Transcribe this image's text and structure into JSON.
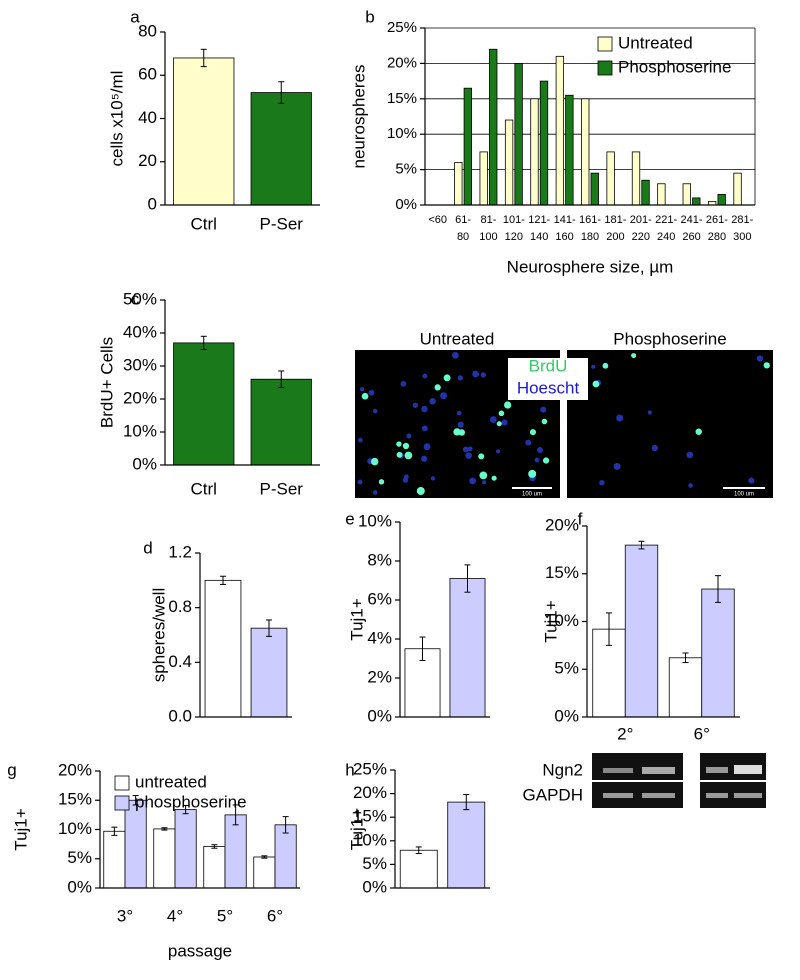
{
  "chart_data": [
    {
      "type": "bar",
      "label": "a",
      "ylabel": "cells x10⁵/ml",
      "categories": [
        "Ctrl",
        "P-Ser"
      ],
      "values": [
        68,
        52
      ],
      "errors": [
        4,
        5
      ],
      "colors": [
        "#ffffcc",
        "#1a7a1a"
      ],
      "ylim": [
        0,
        80
      ],
      "yticks": [
        0,
        20,
        40,
        60,
        80
      ]
    },
    {
      "type": "grouped-bar",
      "label": "b",
      "ylabel": "neurospheres",
      "xlabel": "Neurosphere size, µm",
      "grid": true,
      "legend": "top-right",
      "categories": [
        "<60",
        "61-80",
        "81-100",
        "101-120",
        "121-140",
        "141-160",
        "161-180",
        "181-200",
        "201-220",
        "221-240",
        "241-260",
        "261-280",
        "281-300"
      ],
      "series": [
        {
          "name": "Untreated",
          "color": "#ffffcc",
          "values": [
            0,
            6,
            7.5,
            12,
            15,
            21,
            15,
            7.5,
            7.5,
            3,
            3,
            0.5,
            4.5
          ]
        },
        {
          "name": "Phosphoserine",
          "color": "#1a7a1a",
          "values": [
            0,
            16.5,
            22,
            20,
            17.5,
            15.5,
            4.5,
            0,
            3.5,
            0,
            1,
            1.5,
            0
          ]
        }
      ],
      "ylim": [
        0,
        25
      ],
      "yticks": [
        {
          "value": 0,
          "label": "0%"
        },
        {
          "value": 5,
          "label": "5%"
        },
        {
          "value": 10,
          "label": "10%"
        },
        {
          "value": 15,
          "label": "15%"
        },
        {
          "value": 20,
          "label": "20%"
        },
        {
          "value": 25,
          "label": "25%"
        }
      ]
    },
    {
      "type": "bar",
      "label": "c",
      "ylabel": "BrdU+ Cells",
      "categories": [
        "Ctrl",
        "P-Ser"
      ],
      "values": [
        37,
        26
      ],
      "errors": [
        2,
        2.5
      ],
      "colors": [
        "#1a7a1a",
        "#1a7a1a"
      ],
      "ylim": [
        0,
        50
      ],
      "yticks": [
        {
          "value": 0,
          "label": "0%"
        },
        {
          "value": 10,
          "label": "10%"
        },
        {
          "value": 20,
          "label": "20%"
        },
        {
          "value": 30,
          "label": "30%"
        },
        {
          "value": 40,
          "label": "40%"
        },
        {
          "value": 50,
          "label": "50%"
        }
      ]
    },
    {
      "type": "bar",
      "label": "d",
      "ylabel": "spheres/well",
      "categories": [
        null,
        null
      ],
      "values": [
        1.0,
        0.65
      ],
      "errors": [
        0.03,
        0.06
      ],
      "colors": [
        "#ffffff",
        "#ccccff"
      ],
      "ylim": [
        0,
        1.2
      ],
      "yticks": [
        {
          "value": 0,
          "label": "0.0"
        },
        0.4,
        0.8,
        1.2
      ]
    },
    {
      "type": "bar",
      "label": "e",
      "ylabel": "Tuj1+",
      "categories": [
        null,
        null
      ],
      "values": [
        3.5,
        7.1
      ],
      "errors": [
        0.6,
        0.7
      ],
      "colors": [
        "#ffffff",
        "#ccccff"
      ],
      "ylim": [
        0,
        10
      ],
      "yticks": [
        {
          "value": 0,
          "label": "0%"
        },
        {
          "value": 2,
          "label": "2%"
        },
        {
          "value": 4,
          "label": "4%"
        },
        {
          "value": 6,
          "label": "6%"
        },
        {
          "value": 8,
          "label": "8%"
        },
        {
          "value": 10,
          "label": "10%"
        }
      ]
    },
    {
      "type": "grouped-bar",
      "label": "f",
      "ylabel": "Tuj1+",
      "categories": [
        "2°",
        "6°"
      ],
      "series": [
        {
          "color": "#ffffff",
          "values": [
            9.2,
            6.2
          ],
          "errors": [
            1.7,
            0.5
          ]
        },
        {
          "color": "#ccccff",
          "values": [
            18,
            13.4
          ],
          "errors": [
            0.4,
            1.4
          ]
        }
      ],
      "ylim": [
        0,
        20
      ],
      "yticks": [
        {
          "value": 0,
          "label": "0%"
        },
        {
          "value": 5,
          "label": "5%"
        },
        {
          "value": 10,
          "label": "10%"
        },
        {
          "value": 15,
          "label": "15%"
        },
        {
          "value": 20,
          "label": "20%"
        }
      ]
    },
    {
      "type": "grouped-bar",
      "label": "g",
      "ylabel": "Tuj1+",
      "xlabel": "passage",
      "legend": "top-left",
      "categories": [
        "3°",
        "4°",
        "5°",
        "6°"
      ],
      "series": [
        {
          "name": "untreated",
          "color": "#ffffff",
          "values": [
            9.7,
            10.1,
            7.1,
            5.3
          ],
          "errors": [
            0.7,
            0.2,
            0.3,
            0.2
          ]
        },
        {
          "name": "phosphoserine",
          "color": "#ccccff",
          "values": [
            15,
            13.4,
            12.5,
            10.8
          ],
          "errors": [
            0.8,
            0.7,
            1.7,
            1.4
          ]
        }
      ],
      "ylim": [
        0,
        20
      ],
      "yticks": [
        {
          "value": 0,
          "label": "0%"
        },
        {
          "value": 5,
          "label": "5%"
        },
        {
          "value": 10,
          "label": "10%"
        },
        {
          "value": 15,
          "label": "15%"
        },
        {
          "value": 20,
          "label": "20%"
        }
      ]
    },
    {
      "type": "bar",
      "label": "h",
      "ylabel": "Tuj1+",
      "categories": [
        null,
        null
      ],
      "values": [
        8,
        18.2
      ],
      "errors": [
        0.7,
        1.6
      ],
      "colors": [
        "#ffffff",
        "#ccccff"
      ],
      "ylim": [
        0,
        25
      ],
      "yticks": [
        {
          "value": 0,
          "label": "0%"
        },
        {
          "value": 5,
          "label": "5%"
        },
        {
          "value": 10,
          "label": "10%"
        },
        {
          "value": 15,
          "label": "15%"
        },
        {
          "value": 20,
          "label": "20%"
        },
        {
          "value": 25,
          "label": "25%"
        }
      ]
    }
  ],
  "micrographs": {
    "titles": [
      "Untreated",
      "Phosphoserine"
    ],
    "stains": [
      "BrdU",
      "Hoescht"
    ],
    "scale_bar": "100 um"
  },
  "gel": {
    "rows": [
      "Ngn2",
      "GAPDH"
    ]
  }
}
